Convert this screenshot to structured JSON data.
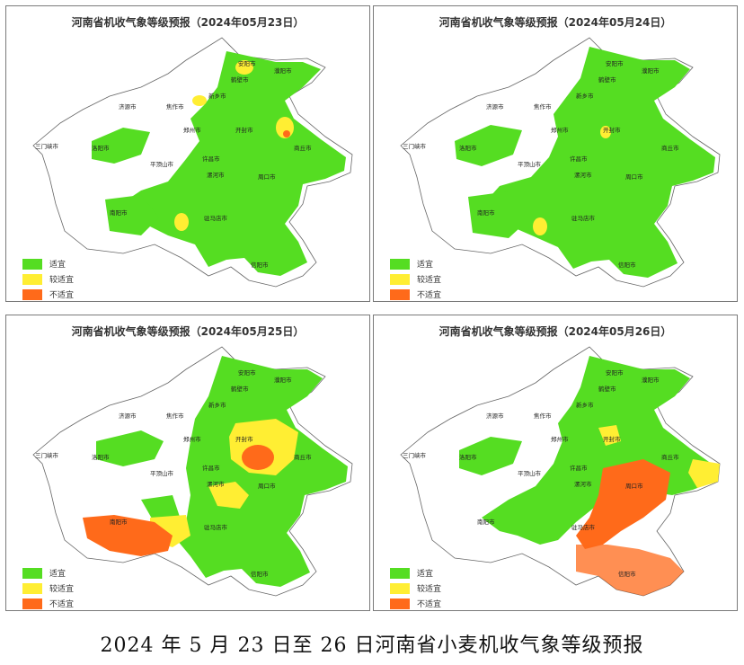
{
  "colors": {
    "suitable": "#55dd22",
    "less_suitable": "#ffee33",
    "unsuitable": "#ff6a1a",
    "unclassified": "#ffffff",
    "boundary": "#666666"
  },
  "legend": {
    "suitable": "适宜",
    "less_suitable": "较适宜",
    "unsuitable": "不适宜"
  },
  "cities": {
    "anyang": "安阳市",
    "hebi": "鹤壁市",
    "puyang": "濮阳市",
    "xinxiang": "新乡市",
    "jiaozuo": "焦作市",
    "jiyuan": "济源市",
    "sanmenxia": "三门峡市",
    "luoyang": "洛阳市",
    "zhengzhou": "郑州市",
    "kaifeng": "开封市",
    "shangqiu": "商丘市",
    "pingdingshan": "平顶山市",
    "xuchang": "许昌市",
    "luohe": "漯河市",
    "zhoukou": "周口市",
    "nanyang": "南阳市",
    "zhumadian": "驻马店市",
    "xinyang": "信阳市"
  },
  "panels": [
    {
      "title": "河南省机收气象等级预报（2024年05月23日）"
    },
    {
      "title": "河南省机收气象等级预报（2024年05月24日）"
    },
    {
      "title": "河南省机收气象等级预报（2024年05月25日）"
    },
    {
      "title": "河南省机收气象等级预报（2024年05月26日）"
    }
  ],
  "caption": "2024 年 5 月 23 日至 26 日河南省小麦机收气象等级预报"
}
